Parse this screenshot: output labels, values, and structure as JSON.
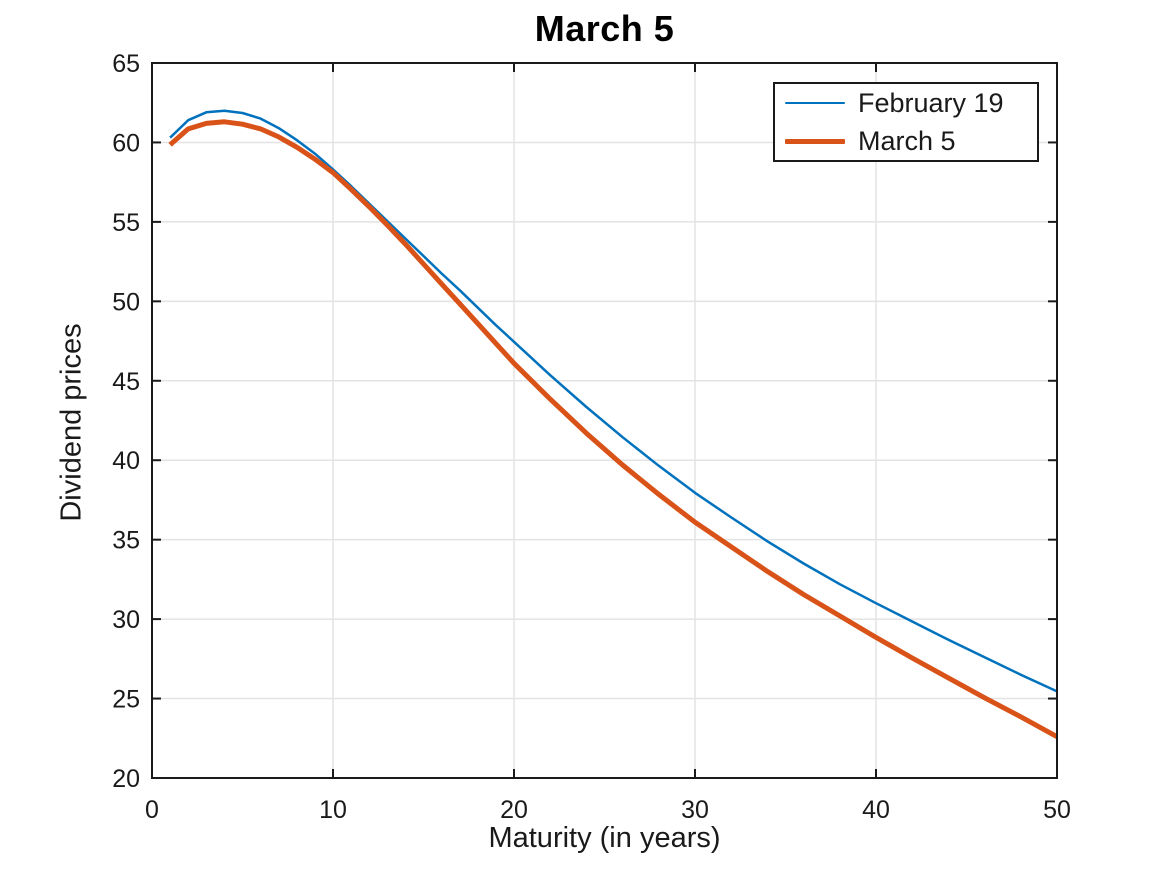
{
  "chart_data": {
    "type": "line",
    "title": "March 5",
    "xlabel": "Maturity (in years)",
    "ylabel": "Dividend prices",
    "xlim": [
      0,
      50
    ],
    "ylim": [
      20,
      65
    ],
    "xticks": [
      0,
      10,
      20,
      30,
      40,
      50
    ],
    "yticks": [
      20,
      25,
      30,
      35,
      40,
      45,
      50,
      55,
      60,
      65
    ],
    "grid": true,
    "legend_position": "top-right",
    "x": [
      1,
      2,
      3,
      4,
      5,
      6,
      7,
      8,
      9,
      10,
      11,
      12,
      13,
      14,
      15,
      16,
      17,
      18,
      19,
      20,
      22,
      24,
      26,
      28,
      30,
      32,
      34,
      36,
      38,
      40,
      42,
      44,
      46,
      48,
      50
    ],
    "series": [
      {
        "name": "February 19",
        "color": "#0072BD",
        "line_width": 2.5,
        "values": [
          60.3,
          61.4,
          61.9,
          62.0,
          61.85,
          61.5,
          60.9,
          60.15,
          59.3,
          58.3,
          57.25,
          56.15,
          55.05,
          53.95,
          52.85,
          51.75,
          50.7,
          49.6,
          48.5,
          47.45,
          45.35,
          43.35,
          41.45,
          39.65,
          37.95,
          36.4,
          34.9,
          33.5,
          32.2,
          31.0,
          29.85,
          28.7,
          27.6,
          26.5,
          25.45
        ]
      },
      {
        "name": "March 5",
        "color": "#D95319",
        "line_width": 5,
        "values": [
          59.85,
          60.85,
          61.2,
          61.3,
          61.15,
          60.85,
          60.35,
          59.7,
          58.95,
          58.1,
          57.05,
          55.95,
          54.8,
          53.6,
          52.35,
          51.1,
          49.85,
          48.6,
          47.35,
          46.1,
          43.85,
          41.7,
          39.7,
          37.85,
          36.1,
          34.55,
          33.0,
          31.55,
          30.2,
          28.85,
          27.55,
          26.3,
          25.05,
          23.85,
          22.6
        ]
      }
    ]
  },
  "style": {
    "axis_color": "#1a1a1a",
    "grid_color": "#e3e3e3",
    "tick_label_color": "#1a1a1a",
    "background": "#ffffff"
  }
}
